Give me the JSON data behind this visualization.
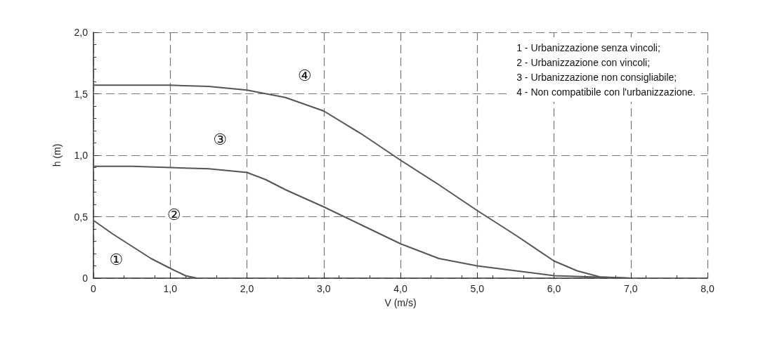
{
  "chart_data": {
    "type": "line",
    "xlabel": "V (m/s)",
    "ylabel": "h (m)",
    "xlim": [
      0,
      8
    ],
    "ylim": [
      0,
      2
    ],
    "xticks": [
      0,
      {
        "value": 1,
        "label": "1,0"
      },
      {
        "value": 2,
        "label": "2,0"
      },
      {
        "value": 3,
        "label": "3,0"
      },
      {
        "value": 4,
        "label": "4,0"
      },
      {
        "value": 5,
        "label": "5,0"
      },
      {
        "value": 6,
        "label": "6,0"
      },
      {
        "value": 7,
        "label": "7,0"
      },
      {
        "value": 8,
        "label": "8,0"
      }
    ],
    "yticks": [
      0,
      {
        "value": 0.5,
        "label": "0,5"
      },
      {
        "value": 1,
        "label": "1,0"
      },
      {
        "value": 1.5,
        "label": "1,5"
      },
      {
        "value": 2,
        "label": "2,0"
      }
    ],
    "grid": true,
    "marker": "none",
    "line_style": "solid",
    "series": [
      {
        "color": "#555555",
        "x": [
          0,
          0.25,
          0.5,
          0.75,
          1.0,
          1.2,
          1.35
        ],
        "values": [
          0.47,
          0.36,
          0.26,
          0.16,
          0.08,
          0.02,
          0
        ]
      },
      {
        "color": "#555555",
        "x": [
          0,
          0.5,
          1.0,
          1.5,
          2.0,
          2.25,
          2.5,
          3.0,
          3.5,
          4.0,
          4.5,
          5.0,
          5.5,
          6.0,
          6.5,
          7.0
        ],
        "values": [
          0.91,
          0.91,
          0.9,
          0.89,
          0.86,
          0.8,
          0.72,
          0.58,
          0.43,
          0.28,
          0.16,
          0.1,
          0.06,
          0.02,
          0.01,
          0
        ]
      },
      {
        "color": "#555555",
        "x": [
          0,
          0.5,
          1.0,
          1.5,
          2.0,
          2.5,
          3.0,
          3.5,
          4.0,
          4.5,
          5.0,
          5.5,
          6.0,
          6.3,
          6.6,
          7.0
        ],
        "values": [
          1.57,
          1.57,
          1.57,
          1.56,
          1.53,
          1.47,
          1.36,
          1.17,
          0.96,
          0.76,
          0.55,
          0.35,
          0.14,
          0.06,
          0.01,
          0
        ]
      }
    ],
    "annotations": [
      "1 - Urbanizzazione senza vincoli;",
      "2 - Urbanizzazione con vincoli;",
      "3 - Urbanizzazione non consigliabile;",
      "4 - Non compatibile con l'urbanizzazione.",
      "①",
      "②",
      "③",
      "④"
    ]
  }
}
